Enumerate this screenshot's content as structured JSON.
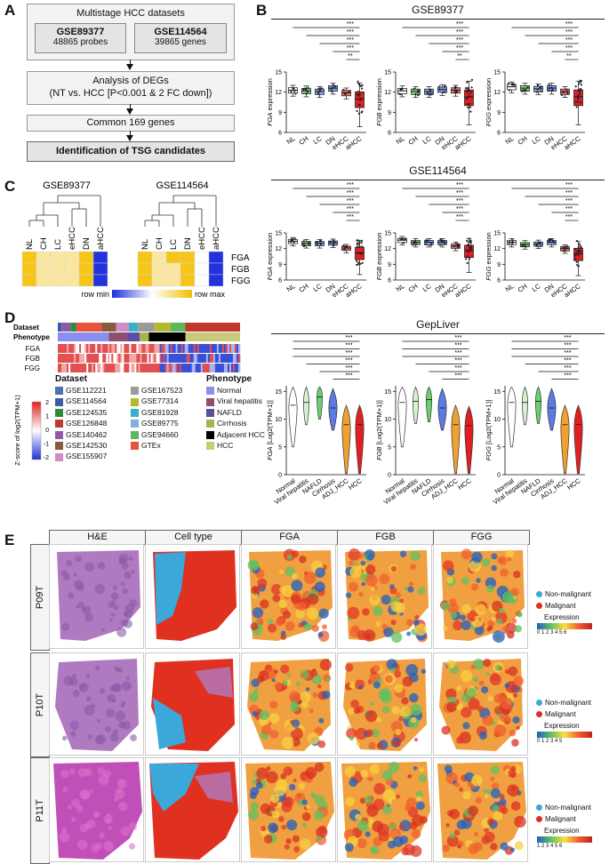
{
  "panels": {
    "a": "A",
    "b": "B",
    "c": "C",
    "d": "D",
    "e": "E"
  },
  "panelA": {
    "top_title": "Multistage HCC datasets",
    "ds1_name": "GSE89377",
    "ds1_desc": "48865 probes",
    "ds2_name": "GSE114564",
    "ds2_desc": "39865 genes",
    "deg_line1": "Analysis of DEGs",
    "deg_line2": "(NT vs. HCC [P<0.001 & 2 FC down])",
    "common": "Common 169 genes",
    "final": "Identification of TSG candidates"
  },
  "panelB": {
    "title1": "GSE89377",
    "title2": "GSE114564",
    "stages": [
      "NL",
      "CH",
      "LC",
      "DN",
      "eHCC",
      "aHCC"
    ],
    "genes": [
      "FGA",
      "FGB",
      "FGG"
    ],
    "ylabel_suffix": " expression",
    "sig": "***",
    "sig_double": "**",
    "sig_single": "*",
    "ticks1": [
      "15",
      "12",
      "9",
      "6"
    ],
    "ticks2": [
      "15",
      "12",
      "9",
      "6"
    ]
  },
  "panelC": {
    "title1": "GSE89377",
    "title2": "GSE114564",
    "cols1": [
      "NL",
      "CH",
      "LC",
      "eHCC",
      "DN",
      "aHCC"
    ],
    "cols2": [
      "NL",
      "CH",
      "LC",
      "DN",
      "eHCC",
      "aHCC"
    ],
    "rows": [
      "FGA",
      "FGB",
      "FGG"
    ],
    "legend_min": "row min",
    "legend_max": "row max"
  },
  "panelD": {
    "title": "GepLiver",
    "row_dataset": "Dataset",
    "row_phenotype": "Phenotype",
    "rows": [
      "FGA",
      "FGB",
      "FGG"
    ],
    "zscore_label": "Z-score of log2(TPM+1)",
    "scale_ticks": [
      "2",
      "1",
      "0",
      "-1",
      "-2"
    ],
    "dataset_header": "Dataset",
    "phenotype_header": "Phenotype",
    "datasets_col1": [
      "GSE112221",
      "GSE114564",
      "GSE124535",
      "GSE126848",
      "GSE140462",
      "GSE142530",
      "GSE155907"
    ],
    "datasets_col2": [
      "GSE167523",
      "GSE77314",
      "GSE81928",
      "GSE89775",
      "GSE94660",
      "GTEx"
    ],
    "dataset_colors_col1": [
      "#4c72b0",
      "#3b5da8",
      "#2e8b3e",
      "#c0392b",
      "#8e5aa8",
      "#8a5a3c",
      "#cf8ec7"
    ],
    "dataset_colors_col2": [
      "#9a9a9a",
      "#b5b82e",
      "#38b0c8",
      "#7fb3d5",
      "#5cb85c",
      "#e8543a"
    ],
    "phenotypes": [
      "Normal",
      "Viral hepatitis",
      "NAFLD",
      "Cirrhosis",
      "Adjacent HCC",
      "HCC"
    ],
    "phenotype_colors": [
      "#8b8ff0",
      "#8e4e6e",
      "#5a4fa0",
      "#a8b34a",
      "#000000",
      "#c9c97a"
    ],
    "groups": [
      "Normal",
      "Viral hepatitis",
      "NAFLD",
      "Cirrhosis",
      "ADJ_HCC",
      "HCC"
    ],
    "ylabel_suffix": " [Log2(TPM+1)]",
    "ticks": [
      "15",
      "10",
      "5",
      "0"
    ]
  },
  "panelE": {
    "cols": [
      "H&E",
      "Cell type",
      "FGA",
      "FGB",
      "FGG"
    ],
    "rows": [
      "P09T",
      "P10T",
      "P11T"
    ],
    "legend_nonmal": "Non-malignant",
    "legend_mal": "Malignant",
    "legend_expr": "Expression",
    "expr_ticks_p09": "0  1  2  3  4  5  6",
    "expr_ticks_p10": "0  1  2  3  4  5",
    "expr_ticks_p11": "1  2  3  4  5  6"
  },
  "chart_data": [
    {
      "type": "box",
      "title": "GSE89377",
      "categories": [
        "NL",
        "CH",
        "LC",
        "DN",
        "eHCC",
        "aHCC"
      ],
      "series": [
        {
          "name": "FGA",
          "values": [
            12.3,
            12.2,
            12.1,
            12.6,
            11.9,
            11.0
          ]
        },
        {
          "name": "FGB",
          "values": [
            12.2,
            12.1,
            12.1,
            12.4,
            12.3,
            11.3
          ]
        },
        {
          "name": "FGG",
          "values": [
            12.8,
            12.6,
            12.5,
            12.6,
            12.1,
            11.3
          ]
        }
      ],
      "ylim": [
        6,
        15
      ]
    },
    {
      "type": "box",
      "title": "GSE114564",
      "categories": [
        "NL",
        "CH",
        "LC",
        "DN",
        "eHCC",
        "aHCC"
      ],
      "series": [
        {
          "name": "FGA",
          "values": [
            13.4,
            13.0,
            13.0,
            13.1,
            12.1,
            11.2
          ]
        },
        {
          "name": "FGB",
          "values": [
            13.6,
            13.2,
            13.2,
            13.2,
            12.5,
            11.6
          ]
        },
        {
          "name": "FGG",
          "values": [
            13.2,
            12.8,
            12.9,
            13.2,
            12.0,
            11.0
          ]
        }
      ],
      "ylim": [
        6,
        15
      ]
    },
    {
      "type": "violin",
      "title": "GepLiver",
      "categories": [
        "Normal",
        "Viral hepatitis",
        "NAFLD",
        "Cirrhosis",
        "ADJ_HCC",
        "HCC"
      ],
      "series": [
        {
          "name": "FGA",
          "values": [
            12.5,
            13.0,
            14.0,
            12.0,
            9.0,
            9.0
          ]
        },
        {
          "name": "FGB",
          "values": [
            13.0,
            13.2,
            13.5,
            12.0,
            9.0,
            8.8
          ]
        },
        {
          "name": "FGG",
          "values": [
            13.0,
            13.0,
            13.2,
            12.0,
            9.0,
            9.0
          ]
        }
      ],
      "ylim": [
        0,
        16
      ]
    }
  ],
  "colors": {
    "red": "#e02020",
    "blue": "#3050e0",
    "yellow": "#f5c518",
    "boxblue": "#5b7be0",
    "boxgreen": "#6dd06d"
  }
}
